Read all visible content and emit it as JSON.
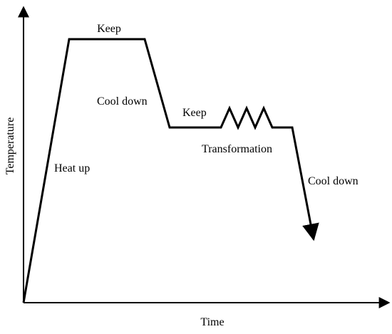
{
  "axes": {
    "y_label": "Temperature",
    "x_label": "Time"
  },
  "stages": [
    {
      "label": "Heat up"
    },
    {
      "label": "Keep"
    },
    {
      "label": "Cool down"
    },
    {
      "label": "Keep"
    },
    {
      "label": "Transformation"
    },
    {
      "label": "Cool down"
    }
  ]
}
